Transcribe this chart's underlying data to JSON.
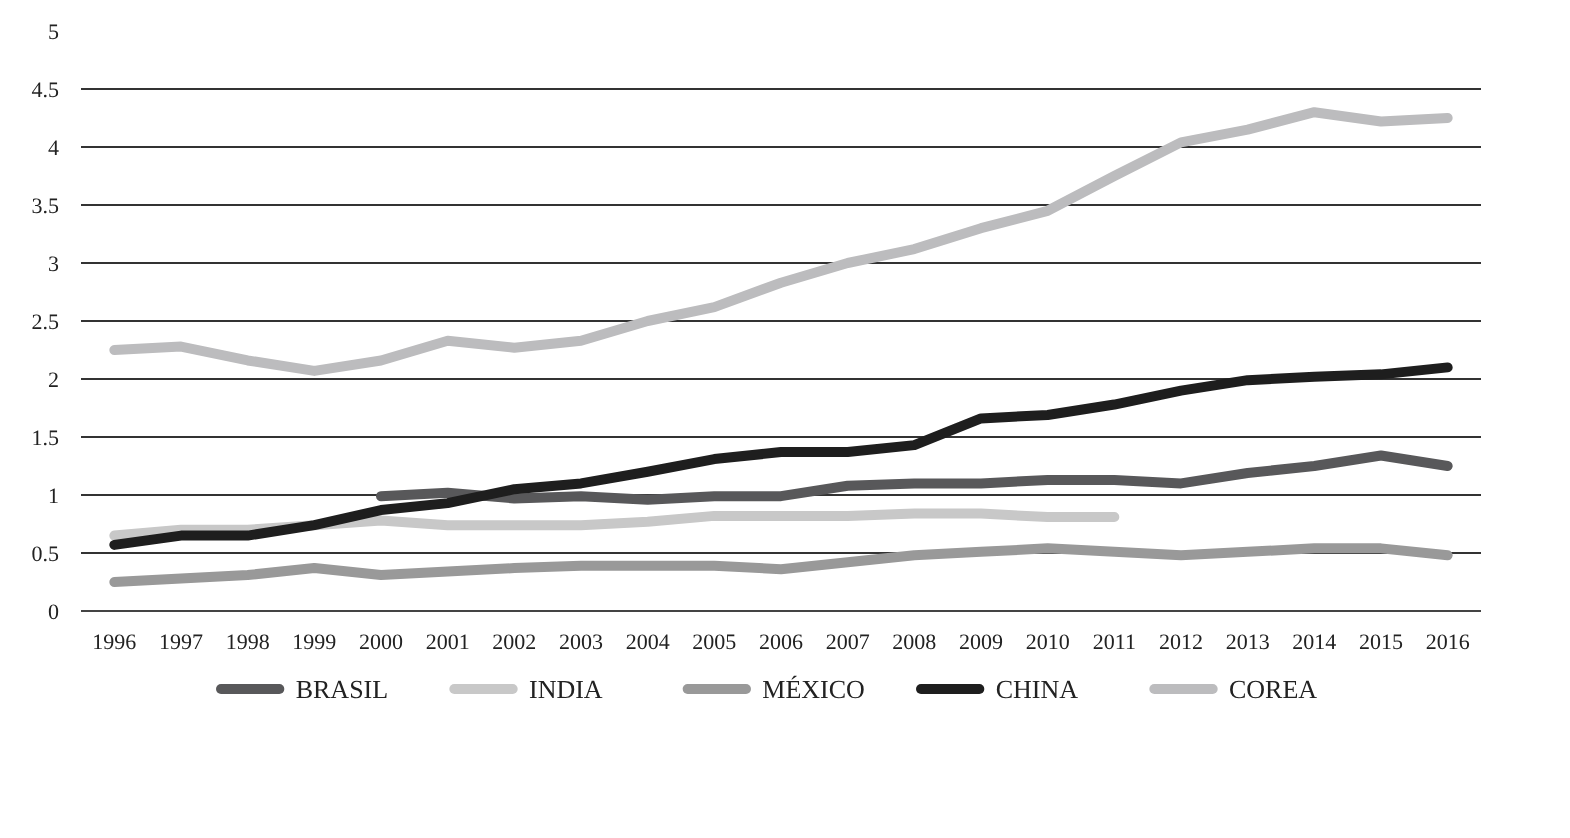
{
  "chart_data": {
    "type": "line",
    "categories": [
      "1996",
      "1997",
      "1998",
      "1999",
      "2000",
      "2001",
      "2002",
      "2003",
      "2004",
      "2005",
      "2006",
      "2007",
      "2008",
      "2009",
      "2010",
      "2011",
      "2012",
      "2013",
      "2014",
      "2015",
      "2016"
    ],
    "ylim": [
      0,
      5
    ],
    "yticks": [
      0,
      0.5,
      1,
      1.5,
      2,
      2.5,
      3,
      3.5,
      4,
      4.5,
      5
    ],
    "grid": "y",
    "legend": "bottom",
    "marker": "none",
    "line_style": "solid",
    "series": [
      {
        "name": "BRASIL",
        "color": "#58585a",
        "values": [
          null,
          null,
          null,
          null,
          0.99,
          1.02,
          0.97,
          0.99,
          0.96,
          0.99,
          0.99,
          1.08,
          1.1,
          1.1,
          1.13,
          1.13,
          1.1,
          1.19,
          1.25,
          1.34,
          1.25
        ]
      },
      {
        "name": "INDIA",
        "color": "#c8c8c8",
        "values": [
          0.65,
          0.7,
          0.7,
          0.74,
          0.78,
          0.74,
          0.74,
          0.74,
          0.77,
          0.82,
          0.82,
          0.82,
          0.84,
          0.84,
          0.81,
          0.81,
          null,
          null,
          null,
          null,
          null
        ]
      },
      {
        "name": "MÉXICO",
        "color": "#999999",
        "values": [
          0.25,
          0.28,
          0.31,
          0.37,
          0.31,
          0.34,
          0.37,
          0.39,
          0.39,
          0.39,
          0.36,
          0.42,
          0.48,
          0.51,
          0.54,
          0.51,
          0.48,
          0.51,
          0.54,
          0.54,
          0.48
        ]
      },
      {
        "name": "CHINA",
        "color": "#1e1e1e",
        "values": [
          0.57,
          0.65,
          0.65,
          0.74,
          0.87,
          0.93,
          1.05,
          1.1,
          1.2,
          1.31,
          1.37,
          1.37,
          1.43,
          1.66,
          1.69,
          1.78,
          1.9,
          1.99,
          2.02,
          2.04,
          2.1
        ]
      },
      {
        "name": "COREA",
        "color": "#bcbcbe",
        "values": [
          2.25,
          2.28,
          2.16,
          2.07,
          2.16,
          2.33,
          2.27,
          2.33,
          2.5,
          2.62,
          2.83,
          3.0,
          3.12,
          3.3,
          3.45,
          3.75,
          4.04,
          4.15,
          4.3,
          4.22,
          4.25
        ]
      }
    ]
  }
}
